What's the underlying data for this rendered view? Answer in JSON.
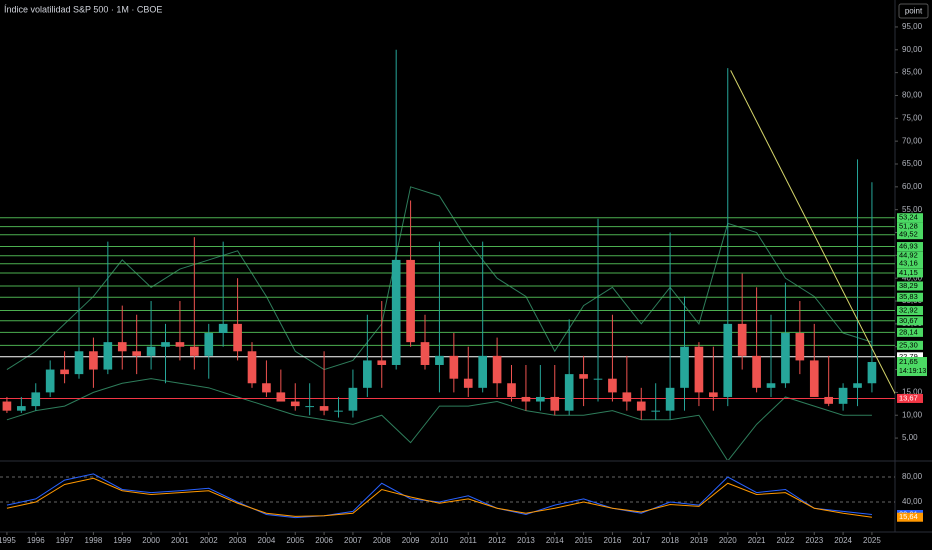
{
  "chart_data": [
    {
      "type": "candlestick",
      "title": "Índice volatilidad S&P 500 · 1M · CBOE",
      "button": "point",
      "up_color": "#26a69a",
      "down_color": "#ef5350",
      "x": [
        1995,
        1995.5,
        1996,
        1996.5,
        1997,
        1997.5,
        1998,
        1998.5,
        1999,
        1999.5,
        2000,
        2000.5,
        2001,
        2001.5,
        2002,
        2002.5,
        2003,
        2003.5,
        2004,
        2004.5,
        2005,
        2005.5,
        2006,
        2006.5,
        2007,
        2007.5,
        2008,
        2008.5,
        2009,
        2009.5,
        2010,
        2010.5,
        2011,
        2011.5,
        2012,
        2012.5,
        2013,
        2013.5,
        2014,
        2014.5,
        2015,
        2015.5,
        2016,
        2016.5,
        2017,
        2017.5,
        2018,
        2018.5,
        2019,
        2019.5,
        2020,
        2020.5,
        2021,
        2021.5,
        2022,
        2022.5,
        2023,
        2023.5,
        2024,
        2024.5,
        2025
      ],
      "open": [
        13,
        11,
        12,
        15,
        20,
        19,
        24,
        20,
        26,
        24,
        23,
        25,
        26,
        25,
        23,
        28,
        30,
        24,
        17,
        15,
        13,
        12,
        12,
        11,
        11,
        16,
        22,
        21,
        44,
        26,
        21,
        23,
        18,
        16,
        23,
        17,
        14,
        13,
        14,
        11,
        19,
        18,
        18,
        15,
        13,
        11,
        11,
        16,
        25,
        15,
        14,
        30,
        23,
        16,
        17,
        28,
        22,
        14,
        12.5,
        16,
        17
      ],
      "high": [
        14,
        14,
        17,
        22,
        24,
        38,
        27,
        48,
        34,
        32,
        35,
        30,
        35,
        49,
        30,
        48,
        40,
        26,
        22,
        20,
        17,
        17,
        24,
        14,
        20,
        32,
        35,
        90,
        57,
        32,
        48,
        28,
        25,
        48,
        27,
        21,
        21,
        21,
        21,
        31,
        23,
        53,
        32,
        23,
        16,
        17,
        50,
        36,
        26,
        25,
        86,
        41,
        38,
        32,
        39,
        35,
        30,
        23,
        17,
        66,
        61
      ],
      "low": [
        10.5,
        10.5,
        11,
        14,
        17,
        18,
        16,
        19,
        20,
        19,
        20,
        17,
        22,
        20,
        18,
        25,
        22,
        16,
        14,
        13,
        11,
        10,
        10,
        9.5,
        9.5,
        14,
        16,
        20,
        25,
        20,
        15,
        15,
        14,
        15,
        14,
        13,
        11,
        11,
        10,
        10,
        12,
        13,
        13,
        11,
        9,
        9,
        9,
        11,
        12,
        11,
        12,
        20,
        15,
        14,
        16,
        19,
        14,
        12,
        11,
        12,
        15
      ],
      "close": [
        11,
        12,
        15,
        20,
        19,
        24,
        20,
        26,
        24,
        23,
        25,
        26,
        25,
        23,
        28,
        30,
        24,
        17,
        15,
        13,
        12,
        12,
        11,
        11,
        16,
        22,
        21,
        44,
        26,
        21,
        23,
        18,
        16,
        23,
        17,
        14,
        13,
        14,
        11,
        19,
        18,
        18,
        15,
        13,
        11,
        11,
        16,
        25,
        15,
        14,
        30,
        23,
        16,
        17,
        28,
        22,
        14,
        12.5,
        16,
        17,
        21.65
      ],
      "xlim": [
        1994.76,
        2025.8
      ],
      "ylim": [
        0.2,
        100.9
      ],
      "xticks": [
        1995,
        1996,
        1997,
        1998,
        1999,
        2000,
        2001,
        2002,
        2003,
        2004,
        2005,
        2006,
        2007,
        2008,
        2009,
        2010,
        2011,
        2012,
        2013,
        2014,
        2015,
        2016,
        2017,
        2018,
        2019,
        2020,
        2021,
        2022,
        2023,
        2024,
        2025
      ],
      "yticks": [
        {
          "value": 5,
          "label": "5,00"
        },
        {
          "value": 10,
          "label": "10,00"
        },
        {
          "value": 15,
          "label": "15,00"
        },
        {
          "value": 20,
          "label": "20,00"
        },
        {
          "value": 25,
          "label": "25,00"
        },
        {
          "value": 30,
          "label": "30,00"
        },
        {
          "value": 35,
          "label": "35,00"
        },
        {
          "value": 40,
          "label": "40,00"
        },
        {
          "value": 45,
          "label": "45,00"
        },
        {
          "value": 50,
          "label": "50,00"
        },
        {
          "value": 55,
          "label": "55,00"
        },
        {
          "value": 60,
          "label": "60,00"
        },
        {
          "value": 65,
          "label": "65,00"
        },
        {
          "value": 70,
          "label": "70,00"
        },
        {
          "value": 75,
          "label": "75,00"
        },
        {
          "value": 80,
          "label": "80,00"
        },
        {
          "value": 85,
          "label": "85,00"
        },
        {
          "value": 90,
          "label": "90,00"
        },
        {
          "value": 95,
          "label": "95,00"
        }
      ],
      "levels": [
        {
          "value": 53.24,
          "label": "53,24"
        },
        {
          "value": 51.28,
          "label": "51,28"
        },
        {
          "value": 49.52,
          "label": "49,52"
        },
        {
          "value": 46.93,
          "label": "46,93"
        },
        {
          "value": 44.92,
          "label": "44,92"
        },
        {
          "value": 43.16,
          "label": "43,16"
        },
        {
          "value": 41.15,
          "label": "41,15"
        },
        {
          "value": 38.29,
          "label": "38,29"
        },
        {
          "value": 35.83,
          "label": "35,83"
        },
        {
          "value": 32.92,
          "label": "32,92"
        },
        {
          "value": 30.67,
          "label": "30,67"
        },
        {
          "value": 28.14,
          "label": "28,14"
        },
        {
          "value": 25.3,
          "label": "25,30"
        }
      ],
      "level_color": "#4caf50",
      "white_level": {
        "value": 22.79,
        "label": "22,79"
      },
      "red_level": {
        "value": 13.67,
        "label": "13,67"
      },
      "last_price": {
        "value": 21.65,
        "label": "21,65"
      },
      "countdown": "14:19:13",
      "trendline": {
        "color": "#d4d46a",
        "x": [
          2020.1,
          2025.9
        ],
        "y": [
          85.5,
          13.5
        ]
      },
      "bands": {
        "color": "#2e7d5b",
        "x": [
          1995,
          1996,
          1997,
          1998,
          1999,
          2000,
          2001,
          2002,
          2003,
          2004,
          2005,
          2006,
          2007,
          2008,
          2009,
          2010,
          2011,
          2012,
          2013,
          2014,
          2015,
          2016,
          2017,
          2018,
          2019,
          2020,
          2021,
          2022,
          2023,
          2024,
          2025
        ],
        "upper": [
          20,
          24,
          30,
          36,
          44,
          38,
          42,
          44,
          46,
          36,
          24,
          20,
          22,
          30,
          60,
          58,
          48,
          40,
          36,
          24,
          34,
          38,
          30,
          38,
          30,
          52,
          50,
          40,
          36,
          28,
          26
        ],
        "lower": [
          9,
          11,
          12,
          15,
          17,
          18,
          17,
          16,
          14,
          12,
          10,
          9,
          8,
          10,
          4,
          12,
          12,
          13,
          11,
          10,
          10,
          11,
          9,
          9,
          10,
          0,
          8,
          14,
          12,
          10,
          10
        ]
      }
    },
    {
      "type": "line",
      "x": [
        1995,
        1996,
        1997,
        1998,
        1999,
        2000,
        2001,
        2002,
        2003,
        2004,
        2005,
        2006,
        2007,
        2008,
        2009,
        2010,
        2011,
        2012,
        2013,
        2014,
        2015,
        2016,
        2017,
        2018,
        2019,
        2020,
        2021,
        2022,
        2023,
        2024,
        2025
      ],
      "xlim": [
        1994.76,
        2025.8
      ],
      "ylim": [
        0,
        104
      ],
      "yticks": [
        {
          "value": 80,
          "label": "80,00"
        },
        {
          "value": 40,
          "label": "40,00"
        }
      ],
      "series": [
        {
          "color": "#2962ff",
          "values": [
            35,
            45,
            75,
            85,
            60,
            55,
            58,
            62,
            40,
            20,
            15,
            18,
            25,
            70,
            45,
            40,
            50,
            30,
            20,
            35,
            45,
            30,
            22,
            40,
            35,
            80,
            55,
            60,
            30,
            25,
            20.01
          ],
          "last_label": "20,01"
        },
        {
          "color": "#ff9800",
          "values": [
            30,
            40,
            68,
            78,
            58,
            52,
            55,
            58,
            38,
            22,
            17,
            18,
            22,
            60,
            48,
            38,
            45,
            30,
            22,
            30,
            40,
            30,
            24,
            36,
            33,
            70,
            52,
            55,
            30,
            22,
            15.64
          ],
          "last_label": "15,64"
        }
      ]
    }
  ]
}
